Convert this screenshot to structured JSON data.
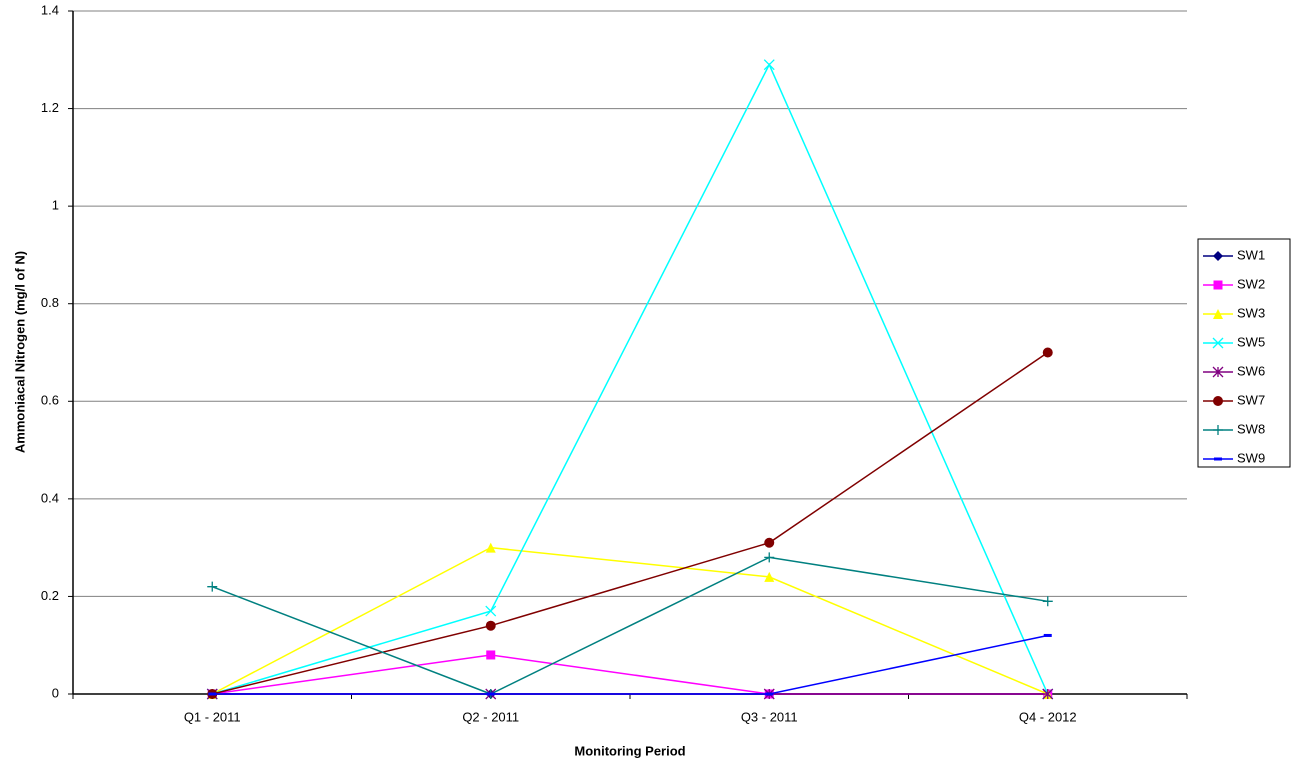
{
  "chart_data": {
    "type": "line",
    "y_label": "Ammoniacal Nitrogen (mg/l of N)",
    "x_label": "Monitoring Period",
    "categories": [
      "Q1 - 2011",
      "Q2 - 2011",
      "Q3 - 2011",
      "Q4 - 2012"
    ],
    "ylim": [
      0,
      1.4
    ],
    "yticks": [
      0,
      0.2,
      0.4,
      0.6,
      0.8,
      1,
      1.2,
      1.4
    ],
    "grid": true,
    "legend": "right",
    "series": [
      {
        "name": "SW1",
        "color": "#000080",
        "marker": "diamond",
        "values": [
          0,
          0,
          0,
          0
        ]
      },
      {
        "name": "SW2",
        "color": "#ff00ff",
        "marker": "square",
        "values": [
          0,
          0.08,
          0,
          0
        ]
      },
      {
        "name": "SW3",
        "color": "#ffff00",
        "marker": "triangle",
        "values": [
          0,
          0.3,
          0.24,
          0
        ]
      },
      {
        "name": "SW5",
        "color": "#00ffff",
        "marker": "x",
        "values": [
          0,
          0.17,
          1.29,
          0
        ]
      },
      {
        "name": "SW6",
        "color": "#800080",
        "marker": "star",
        "values": [
          0,
          0,
          0,
          0
        ]
      },
      {
        "name": "SW7",
        "color": "#800000",
        "marker": "circle",
        "values": [
          0,
          0.14,
          0.31,
          0.7
        ]
      },
      {
        "name": "SW8",
        "color": "#008080",
        "marker": "plus",
        "values": [
          0.22,
          0,
          0.28,
          0.19
        ]
      },
      {
        "name": "SW9",
        "color": "#0000ff",
        "marker": "dash",
        "values": [
          0,
          0,
          0,
          0.12
        ]
      }
    ]
  }
}
